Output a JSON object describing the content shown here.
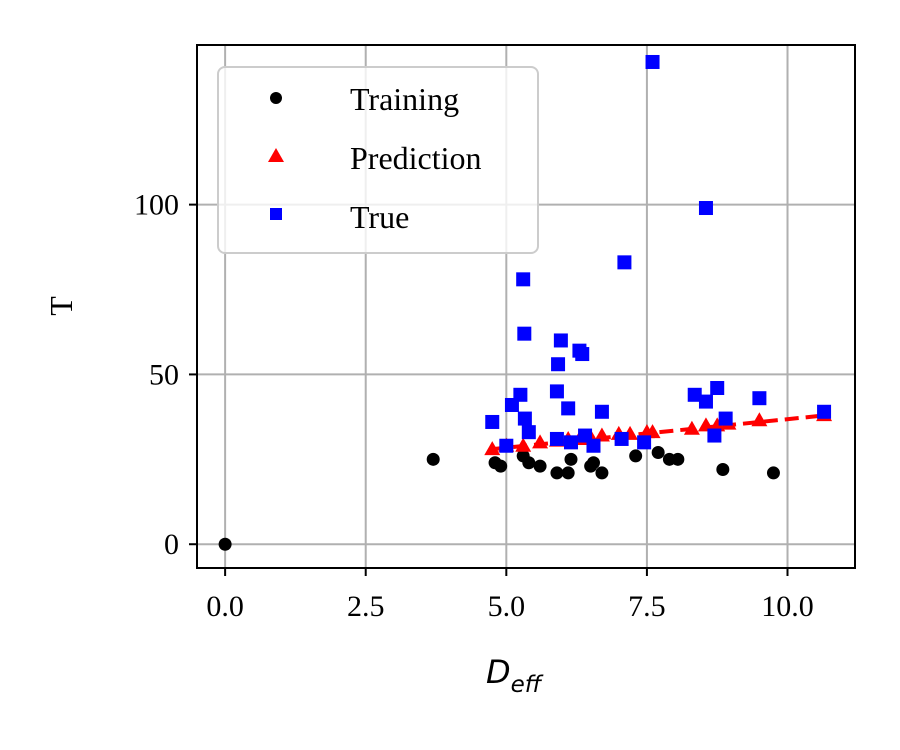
{
  "chart_data": {
    "type": "scatter",
    "xlabel_main": "D",
    "xlabel_sub": "eff",
    "ylabel": "T",
    "xlim": [
      -0.5,
      11.2
    ],
    "ylim": [
      -7,
      147
    ],
    "xticks": [
      0.0,
      2.5,
      5.0,
      7.5,
      10.0
    ],
    "xtick_labels": [
      "0.0",
      "2.5",
      "5.0",
      "7.5",
      "10.0"
    ],
    "yticks": [
      0,
      50,
      100
    ],
    "ytick_labels": [
      "0",
      "50",
      "100"
    ],
    "grid": true,
    "legend_position": "upper-left",
    "series": [
      {
        "name": "Training",
        "marker": "circle",
        "color": "#000000",
        "points": [
          [
            0.0,
            0
          ],
          [
            3.7,
            25
          ],
          [
            4.8,
            24
          ],
          [
            4.9,
            23
          ],
          [
            5.3,
            26
          ],
          [
            5.4,
            24
          ],
          [
            5.6,
            23
          ],
          [
            5.9,
            21
          ],
          [
            6.1,
            21
          ],
          [
            6.15,
            25
          ],
          [
            6.5,
            23
          ],
          [
            6.55,
            24
          ],
          [
            6.7,
            21
          ],
          [
            7.3,
            26
          ],
          [
            7.7,
            27
          ],
          [
            7.9,
            25
          ],
          [
            8.05,
            25
          ],
          [
            8.85,
            22
          ],
          [
            9.75,
            21
          ]
        ]
      },
      {
        "name": "Prediction",
        "marker": "triangle",
        "color": "#ff0000",
        "points": [
          [
            4.75,
            28
          ],
          [
            5.0,
            29
          ],
          [
            5.3,
            29
          ],
          [
            5.6,
            30
          ],
          [
            5.9,
            30.5
          ],
          [
            6.1,
            31
          ],
          [
            6.3,
            31
          ],
          [
            6.5,
            31.5
          ],
          [
            6.7,
            32
          ],
          [
            7.0,
            32.5
          ],
          [
            7.2,
            32.5
          ],
          [
            7.5,
            33
          ],
          [
            7.6,
            33
          ],
          [
            8.3,
            34
          ],
          [
            8.55,
            35
          ],
          [
            8.75,
            35
          ],
          [
            8.95,
            35.5
          ],
          [
            9.5,
            36.5
          ],
          [
            10.65,
            38
          ]
        ],
        "trend_line": {
          "style": "dashed",
          "from": [
            4.75,
            28
          ],
          "to": [
            10.7,
            38
          ]
        }
      },
      {
        "name": "True",
        "marker": "square",
        "color": "#0000ff",
        "points": [
          [
            4.75,
            36
          ],
          [
            5.0,
            29
          ],
          [
            5.1,
            41
          ],
          [
            5.25,
            44
          ],
          [
            5.3,
            78
          ],
          [
            5.32,
            62
          ],
          [
            5.33,
            37
          ],
          [
            5.4,
            33
          ],
          [
            5.9,
            45
          ],
          [
            5.92,
            53
          ],
          [
            5.97,
            60
          ],
          [
            5.9,
            31
          ],
          [
            6.1,
            40
          ],
          [
            6.15,
            30
          ],
          [
            6.3,
            57
          ],
          [
            6.35,
            56
          ],
          [
            6.4,
            32
          ],
          [
            6.55,
            29
          ],
          [
            6.7,
            39
          ],
          [
            7.05,
            31
          ],
          [
            7.1,
            83
          ],
          [
            7.45,
            30
          ],
          [
            7.6,
            142
          ],
          [
            8.35,
            44
          ],
          [
            8.55,
            42
          ],
          [
            8.55,
            99
          ],
          [
            8.7,
            32
          ],
          [
            8.75,
            46
          ],
          [
            8.9,
            37
          ],
          [
            9.5,
            43
          ],
          [
            10.65,
            39
          ]
        ]
      }
    ]
  },
  "legend": {
    "items": [
      {
        "label": "Training",
        "color": "#000000",
        "marker": "circle"
      },
      {
        "label": "Prediction",
        "color": "#ff0000",
        "marker": "triangle"
      },
      {
        "label": "True",
        "color": "#0000ff",
        "marker": "square"
      }
    ]
  },
  "colors": {
    "grid": "#b0b0b0",
    "axes": "#000000",
    "trend_line": "#ff0000"
  }
}
